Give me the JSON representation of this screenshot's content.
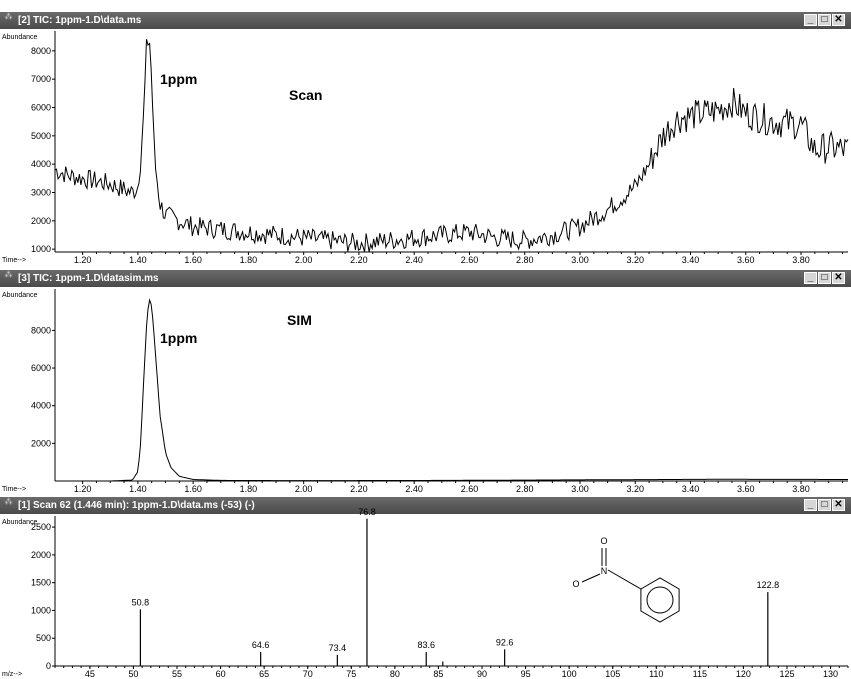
{
  "windows": [
    {
      "title": "[2] TIC: 1ppm-1.D\\data.ms",
      "ylabel": "Abundance",
      "xlabel": "Time-->",
      "annotations": [
        "1ppm",
        "Scan"
      ]
    },
    {
      "title": "[3] TIC: 1ppm-1.D\\datasim.ms",
      "ylabel": "Abundance",
      "xlabel": "Time-->",
      "annotations": [
        "1ppm",
        "SIM"
      ]
    },
    {
      "title": "[1] Scan 62 (1.446 min): 1ppm-1.D\\data.ms (-53) (-)",
      "ylabel": "Abundance",
      "xlabel": "m/z-->",
      "annotations": []
    }
  ],
  "window_buttons": {
    "minimize": "_",
    "maximize": "□",
    "close": "✕"
  },
  "app_icon": "chromatogram-icon",
  "chart_data": [
    {
      "type": "line",
      "title": "[2] TIC: 1ppm-1.D\\data.ms",
      "xlabel": "Time-->",
      "ylabel": "Abundance",
      "xlim": [
        1.1,
        3.97
      ],
      "ylim": [
        900,
        8700
      ],
      "x_ticks": [
        "1.20",
        "1.40",
        "1.60",
        "1.80",
        "2.00",
        "2.20",
        "2.40",
        "2.60",
        "2.80",
        "3.00",
        "3.20",
        "3.40",
        "3.60",
        "3.80"
      ],
      "y_ticks": [
        "1000",
        "2000",
        "3000",
        "4000",
        "5000",
        "6000",
        "7000",
        "8000"
      ],
      "annotations": [
        "1ppm",
        "Scan"
      ],
      "series": [
        {
          "x": [
            1.1,
            1.15,
            1.2,
            1.25,
            1.3,
            1.35,
            1.38,
            1.4,
            1.42,
            1.43,
            1.44,
            1.45,
            1.46,
            1.48,
            1.5,
            1.55,
            1.6,
            1.7,
            1.8,
            1.9,
            2.0,
            2.1,
            2.2,
            2.3,
            2.4,
            2.5,
            2.6,
            2.7,
            2.8,
            2.9,
            3.0,
            3.1,
            3.2,
            3.25,
            3.3,
            3.35,
            3.4,
            3.5,
            3.55,
            3.6,
            3.7,
            3.8,
            3.85,
            3.9,
            3.97
          ],
          "y": [
            3800,
            3600,
            3500,
            3400,
            3300,
            3100,
            3000,
            3200,
            5500,
            7800,
            8700,
            7000,
            4200,
            2600,
            2200,
            2000,
            1800,
            1700,
            1600,
            1500,
            1400,
            1300,
            1200,
            1300,
            1400,
            1500,
            1600,
            1400,
            1300,
            1500,
            1800,
            2400,
            3200,
            4000,
            5000,
            5600,
            5700,
            5900,
            6200,
            5800,
            5500,
            5400,
            4500,
            4600,
            4500
          ]
        }
      ]
    },
    {
      "type": "line",
      "title": "[3] TIC: 1ppm-1.D\\datasim.ms",
      "xlabel": "Time-->",
      "ylabel": "Abundance",
      "xlim": [
        1.1,
        3.97
      ],
      "ylim": [
        0,
        10200
      ],
      "x_ticks": [
        "1.20",
        "1.40",
        "1.60",
        "1.80",
        "2.00",
        "2.20",
        "2.40",
        "2.60",
        "2.80",
        "3.00",
        "3.20",
        "3.40",
        "3.60",
        "3.80"
      ],
      "y_ticks": [
        "2000",
        "4000",
        "6000",
        "8000"
      ],
      "annotations": [
        "1ppm",
        "SIM"
      ],
      "series": [
        {
          "x": [
            1.1,
            1.3,
            1.38,
            1.4,
            1.41,
            1.42,
            1.43,
            1.44,
            1.45,
            1.46,
            1.48,
            1.5,
            1.52,
            1.55,
            1.6,
            1.7,
            2.0,
            2.5,
            3.0,
            3.5,
            3.97
          ],
          "y": [
            0,
            0,
            50,
            500,
            2000,
            5000,
            8000,
            9700,
            9300,
            7500,
            3500,
            1500,
            700,
            250,
            80,
            30,
            20,
            30,
            60,
            90,
            80
          ]
        }
      ]
    },
    {
      "type": "bar",
      "title": "[1] Scan 62 (1.446 min): 1ppm-1.D\\data.ms (-53) (-)",
      "xlabel": "m/z-->",
      "ylabel": "Abundance",
      "xlim": [
        41,
        132
      ],
      "ylim": [
        0,
        2700
      ],
      "x_ticks": [
        "45",
        "50",
        "55",
        "60",
        "65",
        "70",
        "75",
        "80",
        "85",
        "90",
        "95",
        "100",
        "105",
        "110",
        "115",
        "120",
        "125",
        "130"
      ],
      "y_ticks": [
        "0",
        "500",
        "1000",
        "1500",
        "2000",
        "2500"
      ],
      "peaks": [
        {
          "mz": 50.8,
          "abundance": 1020,
          "label": "50.8"
        },
        {
          "mz": 64.6,
          "abundance": 250,
          "label": "64.6"
        },
        {
          "mz": 73.4,
          "abundance": 200,
          "label": "73.4"
        },
        {
          "mz": 76.8,
          "abundance": 2650,
          "label": "76.8"
        },
        {
          "mz": 83.6,
          "abundance": 250,
          "label": "83.6"
        },
        {
          "mz": 85.5,
          "abundance": 80,
          "label": ""
        },
        {
          "mz": 92.6,
          "abundance": 300,
          "label": "92.6"
        },
        {
          "mz": 122.8,
          "abundance": 1330,
          "label": "122.8"
        }
      ],
      "structure": {
        "atoms": [
          "O",
          "N",
          "O"
        ]
      }
    }
  ]
}
